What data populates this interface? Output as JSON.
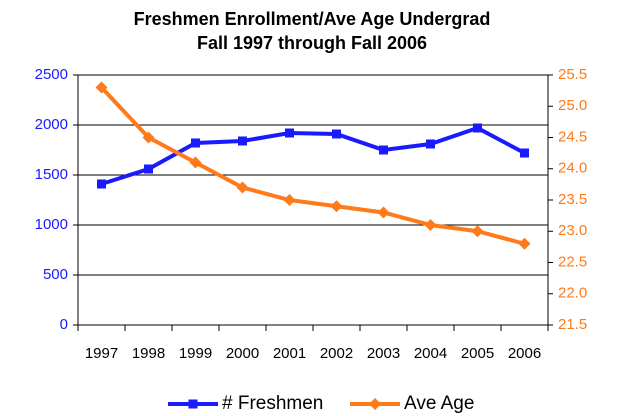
{
  "chart_data": {
    "type": "line",
    "title": "Freshmen Enrollment/Ave Age Undergrad",
    "subtitle": "Fall 1997 through Fall 2006",
    "categories": [
      "1997",
      "1998",
      "1999",
      "2000",
      "2001",
      "2002",
      "2003",
      "2004",
      "2005",
      "2006"
    ],
    "series": [
      {
        "name": "# Freshmen",
        "color": "#1a1aff",
        "marker": "square",
        "values": [
          1410,
          1560,
          1820,
          1840,
          1920,
          1910,
          1750,
          1810,
          1970,
          1720
        ]
      },
      {
        "name": "Ave Age",
        "color": "#ff7a1a",
        "marker": "diamond",
        "axis": "y2",
        "values": [
          25.3,
          24.5,
          24.1,
          23.7,
          23.5,
          23.4,
          23.3,
          23.1,
          23.0,
          22.8
        ]
      }
    ],
    "ylim": [
      0,
      2500
    ],
    "yticks": [
      0,
      500,
      1000,
      1500,
      2000,
      2500
    ],
    "y2lim": [
      21.5,
      25.5
    ],
    "y2ticks": [
      21.5,
      {
        "value": 22,
        "label": "22.0"
      },
      22.5,
      {
        "value": 23,
        "label": "23.0"
      },
      23.5,
      {
        "value": 24,
        "label": "24.0"
      },
      24.5,
      {
        "value": 25,
        "label": "25.0"
      },
      25.5
    ],
    "grid": true,
    "legend": "bottom"
  }
}
